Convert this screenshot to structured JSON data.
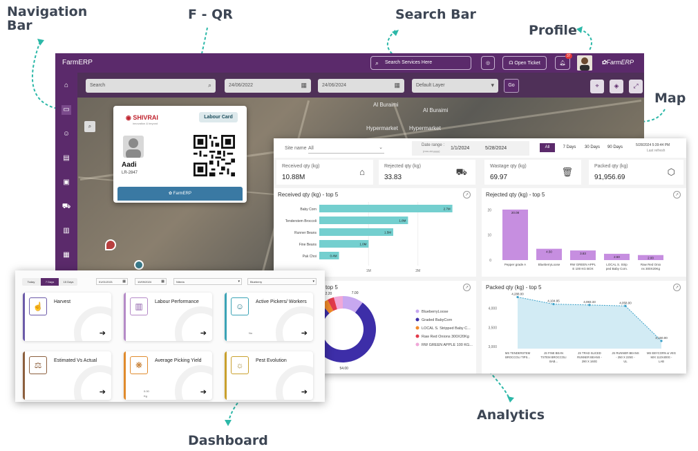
{
  "callouts": {
    "navigation": "Navigation\nBar",
    "fqr": "F - QR",
    "search": "Search Bar",
    "profile": "Profile",
    "map": "Map",
    "analytics": "Analytics",
    "dashboard": "Dashboard"
  },
  "topbar": {
    "brand": "FarmERP",
    "search_placeholder": "Search Services Here",
    "open_ticket": "Open Ticket",
    "notification_count": "37",
    "logo_text": "FarmERP"
  },
  "filterbar": {
    "search_placeholder": "Search",
    "date_from": "24/06/2022",
    "date_to": "24/06/2024",
    "layer": "Default Layer",
    "go": "Go"
  },
  "map": {
    "labels": [
      "Al Buraimi",
      "Al Buraimi",
      "Hypermarket",
      "Hypermarket"
    ]
  },
  "labour_card": {
    "brand": "SHIVRAI",
    "brand_sub": "innovation & beyond",
    "tag": "Labour Card",
    "name": "Aadi",
    "code": "LR-2847",
    "footer": "FarmERP"
  },
  "analytics": {
    "site_label": "Site name",
    "site_value": "All",
    "date_range_label": "Date range :",
    "date_range_hint": "(mm-dd-yyyy)",
    "date_from": "1/1/2024",
    "date_to": "5/28/2024",
    "range_buttons": [
      "All",
      "7 Days",
      "30 Days",
      "90 Days"
    ],
    "refresh_time": "5/28/2024 5:39:44 PM",
    "refresh_label": "Last refresh",
    "kpis": [
      {
        "label": "Received qty (kg)",
        "value": "10.88M",
        "icon": "warehouse-icon"
      },
      {
        "label": "Rejected qty (kg)",
        "value": "33.83",
        "icon": "truck-icon"
      },
      {
        "label": "Wastage qty (kg)",
        "value": "69.97",
        "icon": "trash-icon"
      },
      {
        "label": "Packed qty (kg)",
        "value": "91,956.69",
        "icon": "box-icon"
      }
    ]
  },
  "dashboard": {
    "ranges": [
      "Today",
      "7 Days",
      "15 Days"
    ],
    "date_from": "01/01/2021",
    "date_to": "10/09/2024",
    "farm": "Nibrria",
    "crop": "Blueberry",
    "tiles": [
      {
        "name": "Harvest",
        "color": "#6b5aa8"
      },
      {
        "name": "Labour Performance",
        "color": "#b58ac7"
      },
      {
        "name": "Active Pickers/ Workers",
        "color": "#3aa3b6"
      },
      {
        "name": "Estimated Vs Actual",
        "color": "#8b5e3c"
      },
      {
        "name": "Average Picking Yield",
        "color": "#e08a2c"
      },
      {
        "name": "Pest Evolution",
        "color": "#c9a02c"
      }
    ],
    "tile_notes": {
      "workers_unit": "No",
      "yield_value": "0.00",
      "yield_unit": "Kg"
    }
  },
  "chart_data": [
    {
      "type": "bar",
      "orientation": "horizontal",
      "title": "Received qty (kg) - top 5",
      "categories": [
        "Baby Corn",
        "Tenderstem Broccoli",
        "Runner Beans",
        "Fine Beans",
        "Pak Choi"
      ],
      "values": [
        2.7,
        1.8,
        1.5,
        1.0,
        0.4
      ],
      "value_labels": [
        "2.7M",
        "1.8M",
        "1.5M",
        "1.0M",
        "0.4M"
      ],
      "x_ticks": [
        "1M",
        "2M"
      ],
      "xlim": [
        0,
        3
      ],
      "color": "#74cfcf"
    },
    {
      "type": "bar",
      "title": "Rejected qty (kg) - top 5",
      "categories": [
        "Pepper grade A",
        "BlueberryLoose",
        "RW GREEN APPLE 100 KG BOX",
        "LOCAL S. Stripped Baby Corn.",
        "Raw Red Onions 300X20Kg"
      ],
      "values": [
        20.08,
        4.5,
        3.83,
        2.5,
        2.0
      ],
      "value_labels": [
        "20.08",
        "4.50",
        "3.83",
        "2.50",
        "2.00"
      ],
      "y_ticks": [
        "0",
        "10",
        "20"
      ],
      "ylim": [
        0,
        22
      ],
      "color": "#c68ee0"
    },
    {
      "type": "pie",
      "title": "top 5",
      "categories": [
        "BlueberryLoose",
        "Graded BabyCorn",
        "LOCAL S. Stripped Baby C...",
        "Raw Red Onions 300X20Kg",
        "RW GREEN APPLE 100 KG..."
      ],
      "values": [
        7.0,
        54.0,
        2.47,
        2.2,
        3.0
      ],
      "value_labels": [
        "7.00",
        "54.00",
        "2.47",
        "2.20",
        ""
      ],
      "colors": [
        "#c7a8f0",
        "#3d2ea8",
        "#f28b2b",
        "#e23a4a",
        "#f0a8d8"
      ]
    },
    {
      "type": "area",
      "title": "Packed qty (kg) - top 5",
      "categories": [
        "MS TENDERSTEM BROCCOLI TIPS...",
        "JS FINE BEAN TSTEM BROCCOLI BAB...",
        "JS TRAD SLICED RUNNER BEANS - 290 X 160G",
        "JS RUNNER BEANS - 250 X 225G - UL",
        "MS EBYCORN & VEG MIX 112X400G - LAB"
      ],
      "values": [
        4288,
        4104.95,
        4083.33,
        4058,
        3150
      ],
      "value_labels": [
        "4,288.00",
        "4,104.95",
        "4,083.33",
        "4,058.00",
        "3,150.00"
      ],
      "y_ticks": [
        "3,000",
        "3,500",
        "4,000"
      ],
      "ylim": [
        2950,
        4350
      ],
      "color": "#bfe3f0"
    }
  ]
}
